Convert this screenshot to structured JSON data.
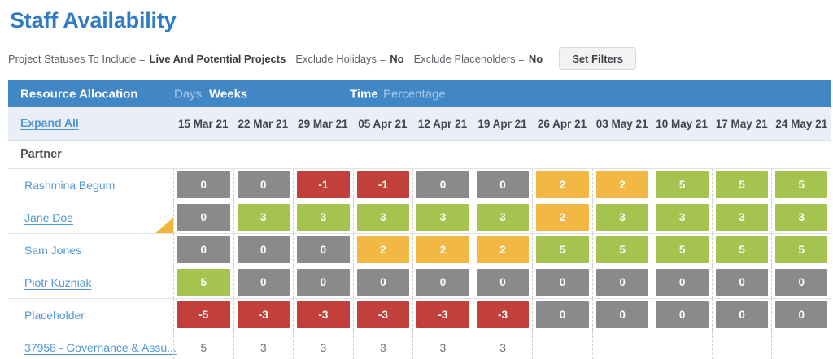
{
  "page": {
    "title": "Staff Availability"
  },
  "filters": {
    "label1": "Project Statuses To Include =",
    "value1": "Live And Potential Projects",
    "label2": "Exclude Holidays =",
    "value2": "No",
    "label3": "Exclude Placeholders =",
    "value3": "No",
    "button_label": "Set Filters"
  },
  "toolbar": {
    "title": "Resource Allocation",
    "days_label": "Days",
    "weeks_label": "Weeks",
    "time_label": "Time",
    "percentage_label": "Percentage",
    "selected_view": "Weeks",
    "selected_unit": "Time"
  },
  "table": {
    "expand_all_label": "Expand All",
    "group_label": "Partner",
    "columns": [
      "15 Mar 21",
      "22 Mar 21",
      "29 Mar 21",
      "05 Apr 21",
      "12 Apr 21",
      "19 Apr 21",
      "26 Apr 21",
      "03 May 21",
      "10 May 21",
      "17 May 21",
      "24 May 21"
    ],
    "rows": [
      {
        "name": "Rashmina Begum",
        "type": "person",
        "flag": false,
        "cells": [
          {
            "value": "0",
            "color": "gray"
          },
          {
            "value": "0",
            "color": "gray"
          },
          {
            "value": "-1",
            "color": "red"
          },
          {
            "value": "-1",
            "color": "red"
          },
          {
            "value": "0",
            "color": "gray"
          },
          {
            "value": "0",
            "color": "gray"
          },
          {
            "value": "2",
            "color": "yellow"
          },
          {
            "value": "2",
            "color": "yellow"
          },
          {
            "value": "5",
            "color": "green"
          },
          {
            "value": "5",
            "color": "green"
          },
          {
            "value": "5",
            "color": "green"
          }
        ]
      },
      {
        "name": "Jane Doe",
        "type": "person",
        "flag": true,
        "cells": [
          {
            "value": "0",
            "color": "gray"
          },
          {
            "value": "3",
            "color": "green"
          },
          {
            "value": "3",
            "color": "green"
          },
          {
            "value": "3",
            "color": "green"
          },
          {
            "value": "3",
            "color": "green"
          },
          {
            "value": "3",
            "color": "green"
          },
          {
            "value": "2",
            "color": "yellow"
          },
          {
            "value": "3",
            "color": "green"
          },
          {
            "value": "3",
            "color": "green"
          },
          {
            "value": "3",
            "color": "green"
          },
          {
            "value": "3",
            "color": "green"
          }
        ]
      },
      {
        "name": "Sam Jones",
        "type": "person",
        "flag": false,
        "cells": [
          {
            "value": "0",
            "color": "gray"
          },
          {
            "value": "0",
            "color": "gray"
          },
          {
            "value": "0",
            "color": "gray"
          },
          {
            "value": "2",
            "color": "yellow"
          },
          {
            "value": "2",
            "color": "yellow"
          },
          {
            "value": "2",
            "color": "yellow"
          },
          {
            "value": "5",
            "color": "green"
          },
          {
            "value": "5",
            "color": "green"
          },
          {
            "value": "5",
            "color": "green"
          },
          {
            "value": "5",
            "color": "green"
          },
          {
            "value": "5",
            "color": "green"
          }
        ]
      },
      {
        "name": "Piotr Kuzniak",
        "type": "person",
        "flag": false,
        "cells": [
          {
            "value": "5",
            "color": "green"
          },
          {
            "value": "0",
            "color": "gray"
          },
          {
            "value": "0",
            "color": "gray"
          },
          {
            "value": "0",
            "color": "gray"
          },
          {
            "value": "0",
            "color": "gray"
          },
          {
            "value": "0",
            "color": "gray"
          },
          {
            "value": "0",
            "color": "gray"
          },
          {
            "value": "0",
            "color": "gray"
          },
          {
            "value": "0",
            "color": "gray"
          },
          {
            "value": "0",
            "color": "gray"
          },
          {
            "value": "0",
            "color": "gray"
          }
        ]
      },
      {
        "name": "Placeholder",
        "type": "person",
        "flag": false,
        "cells": [
          {
            "value": "-5",
            "color": "red"
          },
          {
            "value": "-3",
            "color": "red"
          },
          {
            "value": "-3",
            "color": "red"
          },
          {
            "value": "-3",
            "color": "red"
          },
          {
            "value": "-3",
            "color": "red"
          },
          {
            "value": "-3",
            "color": "red"
          },
          {
            "value": "0",
            "color": "gray"
          },
          {
            "value": "0",
            "color": "gray"
          },
          {
            "value": "0",
            "color": "gray"
          },
          {
            "value": "0",
            "color": "gray"
          },
          {
            "value": "0",
            "color": "gray"
          }
        ]
      },
      {
        "name": "37958 - Governance & Assu...",
        "type": "project",
        "flag": false,
        "cells": [
          {
            "value": "5",
            "color": "plain"
          },
          {
            "value": "3",
            "color": "plain"
          },
          {
            "value": "3",
            "color": "plain"
          },
          {
            "value": "3",
            "color": "plain"
          },
          {
            "value": "3",
            "color": "plain"
          },
          {
            "value": "3",
            "color": "plain"
          },
          {
            "value": "",
            "color": "none"
          },
          {
            "value": "",
            "color": "none"
          },
          {
            "value": "",
            "color": "none"
          },
          {
            "value": "",
            "color": "none"
          },
          {
            "value": "",
            "color": "none"
          }
        ]
      }
    ]
  },
  "colors": {
    "gray": "#8a8a8a",
    "red": "#c1403b",
    "green": "#a4c34f",
    "yellow": "#f3b844",
    "flag": "#f0b43e",
    "header_bar": "#4187c6",
    "header_row_bg": "#eaeef6",
    "title": "#2f7cc4",
    "link": "#4f97d6"
  }
}
